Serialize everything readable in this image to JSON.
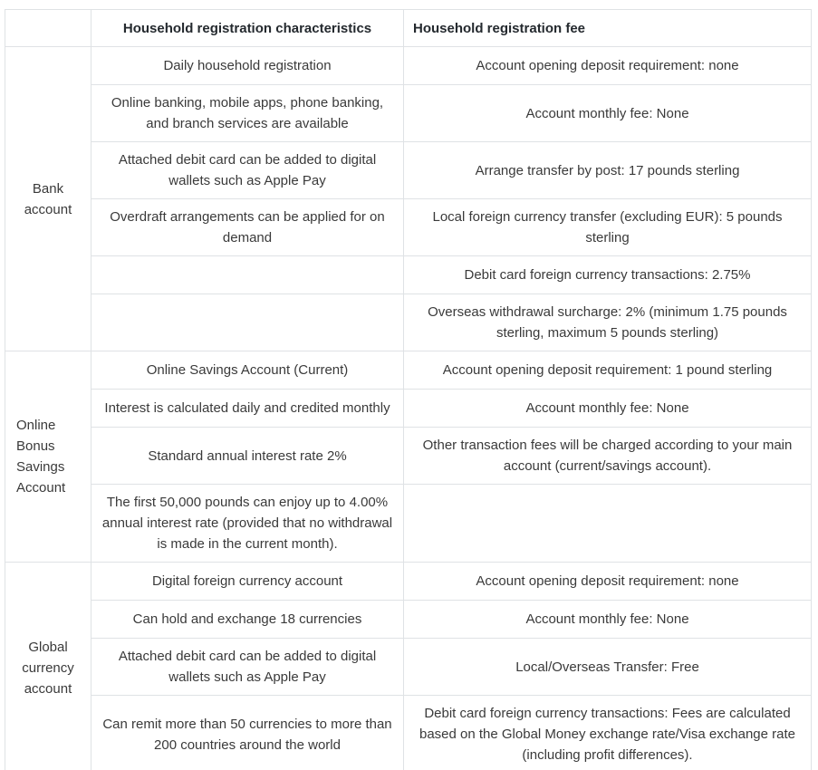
{
  "theme": {
    "border_color": "#dfe2e5",
    "text_color": "#3a3a3a",
    "header_text_color": "#24292e",
    "background_color": "#ffffff"
  },
  "table": {
    "header": {
      "corner": "",
      "characteristics": "Household registration characteristics",
      "fee": "Household registration fee"
    },
    "sections": [
      {
        "label": "Bank account",
        "rows": [
          {
            "characteristic": "Daily household registration",
            "fee": "Account opening deposit requirement: none"
          },
          {
            "characteristic": "Online banking, mobile apps, phone banking, and branch services are available",
            "fee": "Account monthly fee: None"
          },
          {
            "characteristic": "Attached debit card can be added to digital wallets such as Apple Pay",
            "fee": "Arrange transfer by post: 17 pounds sterling"
          },
          {
            "characteristic": "Overdraft arrangements can be applied for on demand",
            "fee": "Local foreign currency transfer (excluding EUR): 5 pounds sterling"
          },
          {
            "characteristic": "",
            "fee": "Debit card foreign currency transactions: 2.75%"
          },
          {
            "characteristic": "",
            "fee": "Overseas withdrawal surcharge: 2% (minimum 1.75 pounds sterling, maximum 5 pounds sterling)"
          }
        ]
      },
      {
        "label": "Online Bonus Savings Account",
        "rows": [
          {
            "characteristic": "Online Savings Account (Current)",
            "fee": "Account opening deposit requirement: 1 pound sterling"
          },
          {
            "characteristic": "Interest is calculated daily and credited monthly",
            "fee": "Account monthly fee: None"
          },
          {
            "characteristic": "Standard annual interest rate 2%",
            "fee": "Other transaction fees will be charged according to your main account (current/savings account)."
          },
          {
            "characteristic": "The first 50,000 pounds can enjoy up to 4.00% annual interest rate (provided that no withdrawal is made in the current month).",
            "fee": ""
          }
        ]
      },
      {
        "label": "Global currency account",
        "rows": [
          {
            "characteristic": "Digital foreign currency account",
            "fee": "Account opening deposit requirement: none"
          },
          {
            "characteristic": "Can hold and exchange 18 currencies",
            "fee": "Account monthly fee: None"
          },
          {
            "characteristic": "Attached debit card can be added to digital wallets such as Apple Pay",
            "fee": "Local/Overseas Transfer: Free"
          },
          {
            "characteristic": "Can remit more than 50 currencies to more than 200 countries around the world",
            "fee": "Debit card foreign currency transactions: Fees are calculated based on the Global Money exchange rate/Visa exchange rate (including profit differences)."
          }
        ]
      }
    ]
  }
}
